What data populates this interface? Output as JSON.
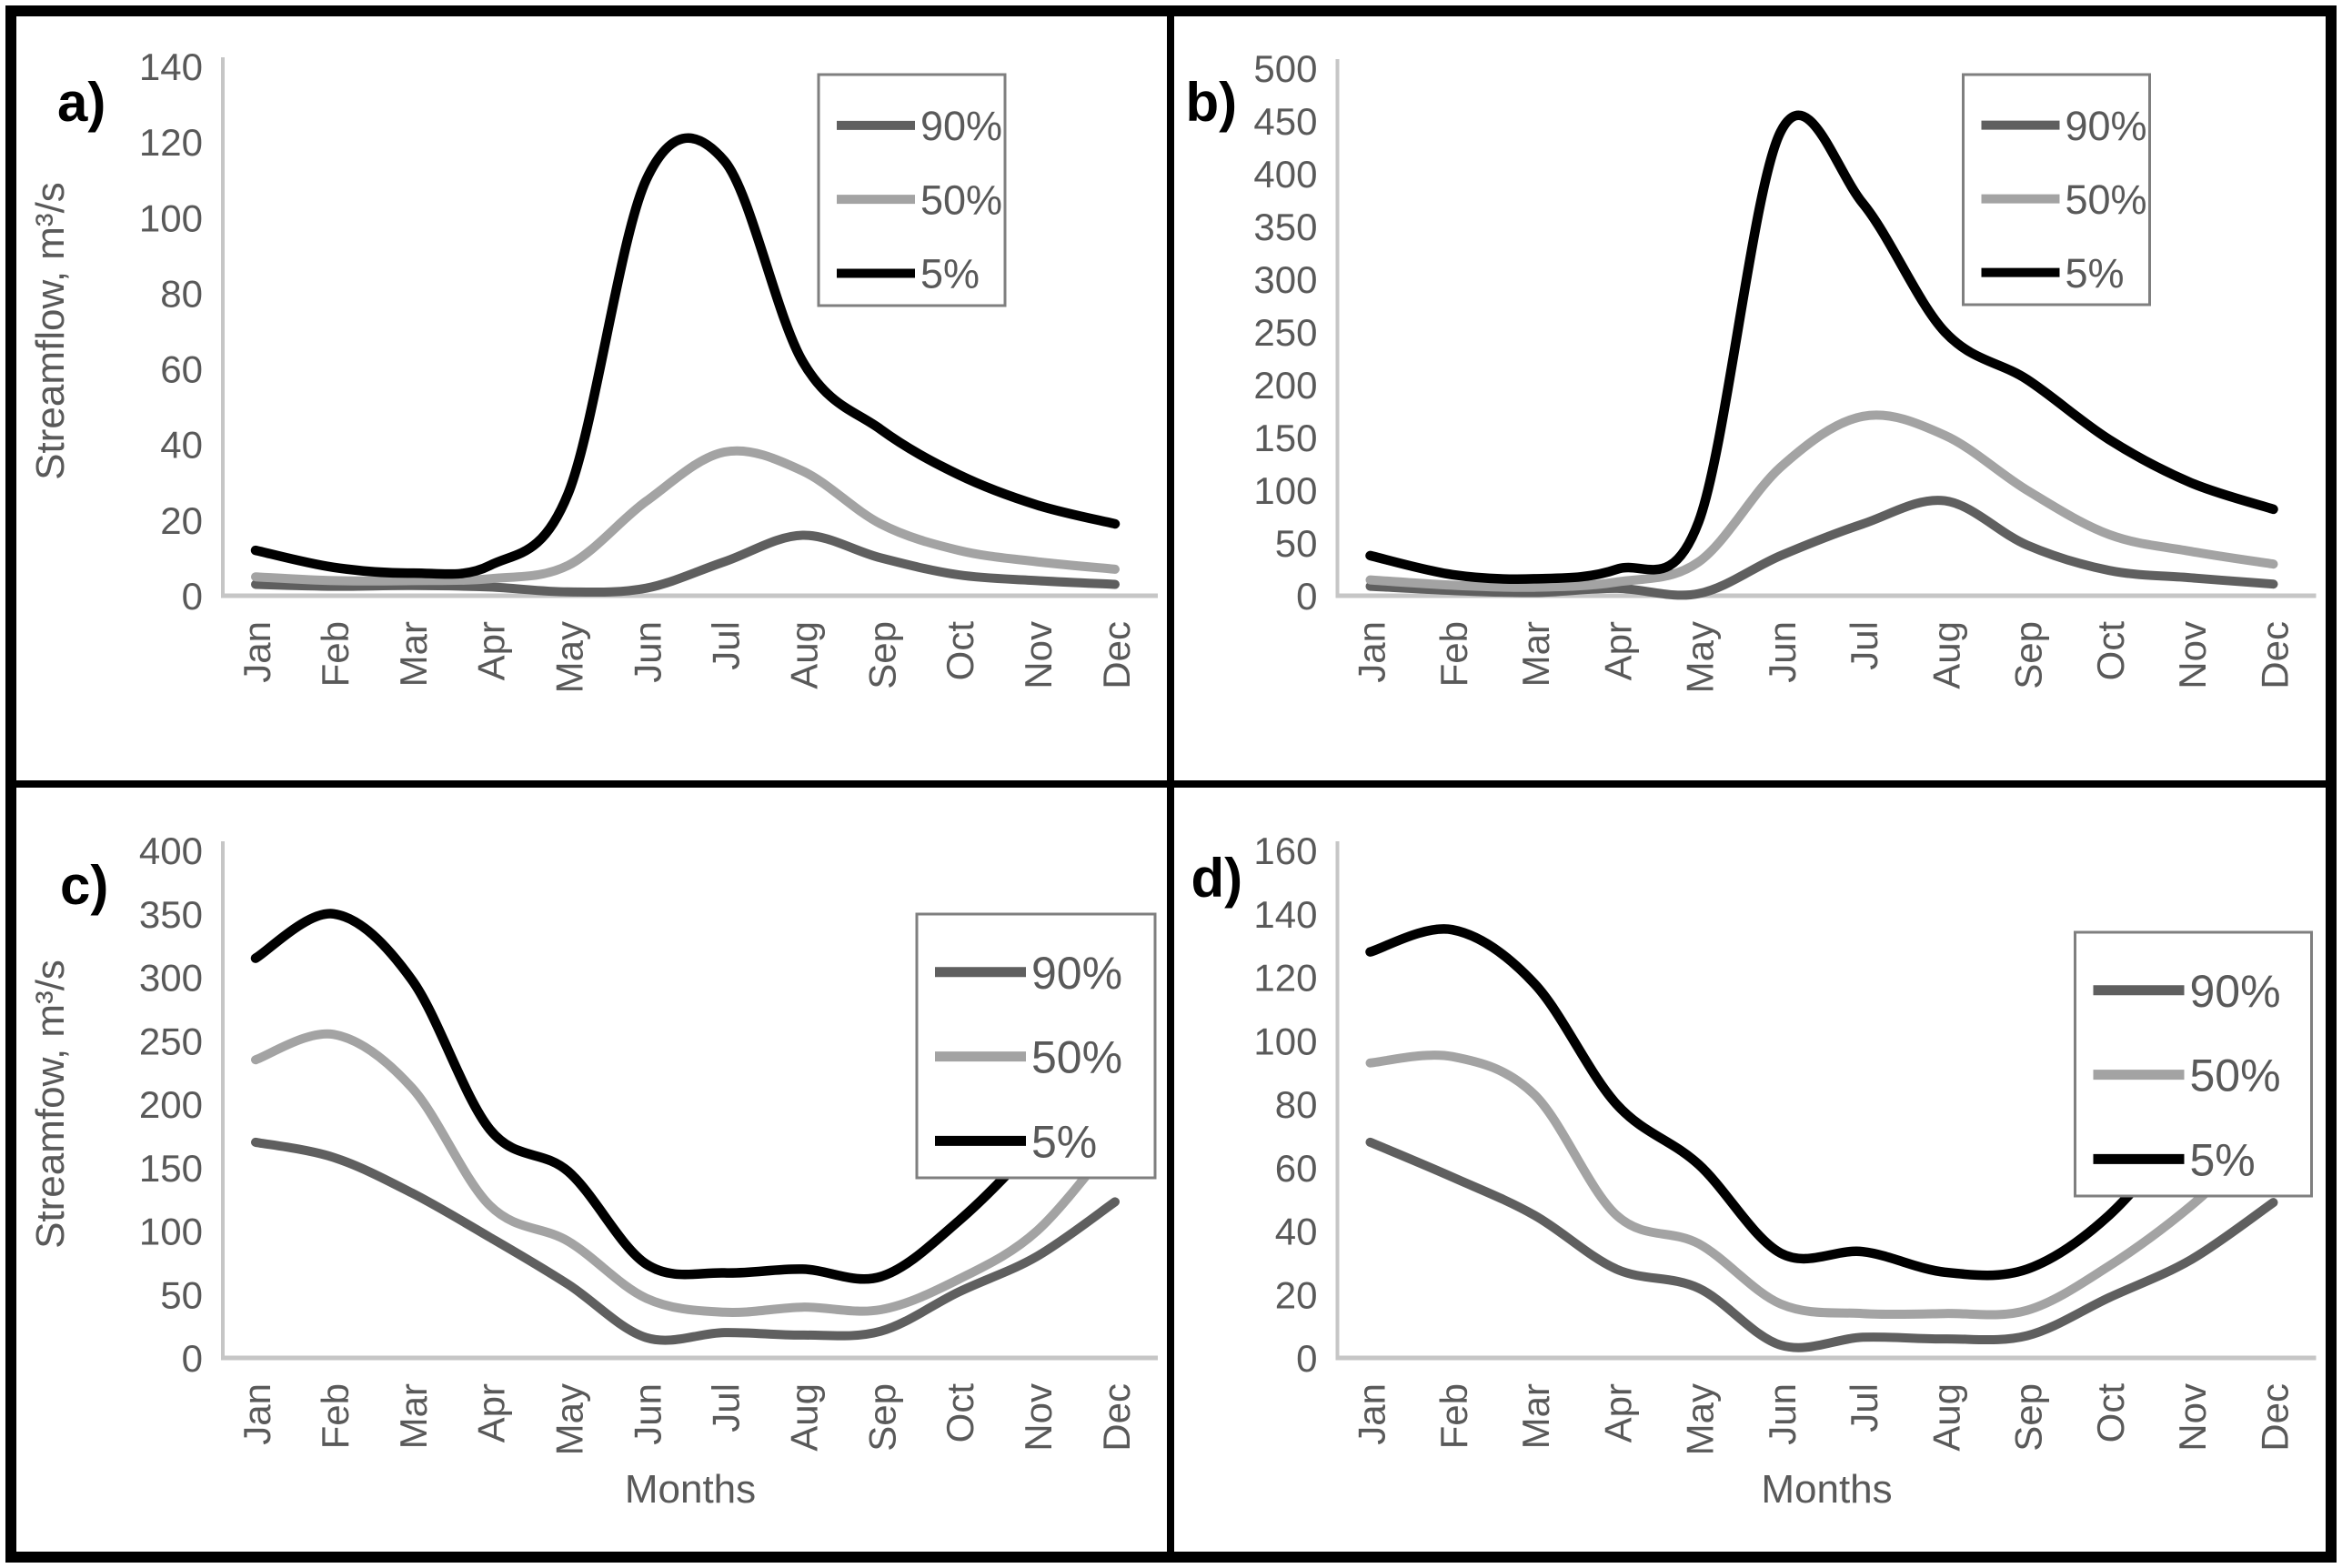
{
  "styles": {
    "text_color": "#595959",
    "axis_color": "#c6c6c6",
    "legend_border_color": "#7f7f7f",
    "panel_letter_color": "#000000",
    "background": "#ffffff",
    "frame_color": "#000000",
    "series_colors": {
      "p90": "#5f5f5f",
      "p50": "#a3a3a3",
      "p5": "#000000"
    }
  },
  "chart_data": [
    {
      "id": "a",
      "panel_label": "a)",
      "type": "line",
      "categories": [
        "Jan",
        "Feb",
        "Mar",
        "Apr",
        "May",
        "Jun",
        "Jul",
        "Aug",
        "Sep",
        "Oct",
        "Nov",
        "Dec"
      ],
      "xlabel": "",
      "ylabel": "Streamflow, m³/s",
      "ylim": [
        0,
        140
      ],
      "ytick_step": 20,
      "grid": false,
      "legend_position": "top-right",
      "legend_entries": [
        "90%",
        "50%",
        "5%"
      ],
      "series": [
        {
          "name": "90%",
          "color": "#5f5f5f",
          "values": [
            3,
            2.5,
            2.7,
            2.3,
            1,
            2,
            9,
            16,
            10,
            5.5,
            4,
            3
          ]
        },
        {
          "name": "50%",
          "color": "#a3a3a3",
          "values": [
            5,
            4,
            4,
            4.5,
            8,
            25,
            38,
            33,
            19,
            12,
            9,
            7
          ]
        },
        {
          "name": "5%",
          "color": "#000000",
          "values": [
            12,
            7.5,
            6,
            8,
            27,
            110,
            115,
            62,
            44,
            32,
            24,
            19
          ]
        }
      ]
    },
    {
      "id": "b",
      "panel_label": "b)",
      "type": "line",
      "categories": [
        "Jan",
        "Feb",
        "Mar",
        "Apr",
        "May",
        "Jun",
        "Jul",
        "Aug",
        "Sep",
        "Oct",
        "Nov",
        "Dec"
      ],
      "xlabel": "",
      "ylabel": "",
      "ylim": [
        0,
        500
      ],
      "ytick_step": 50,
      "grid": false,
      "legend_position": "top-right",
      "legend_entries": [
        "90%",
        "50%",
        "5%"
      ],
      "series": [
        {
          "name": "90%",
          "color": "#5f5f5f",
          "values": [
            9,
            5,
            3,
            7,
            2,
            38,
            68,
            90,
            48,
            24,
            17,
            11
          ]
        },
        {
          "name": "50%",
          "color": "#a3a3a3",
          "values": [
            15,
            10,
            8,
            13,
            32,
            122,
            170,
            152,
            100,
            58,
            42,
            30
          ]
        },
        {
          "name": "5%",
          "color": "#000000",
          "values": [
            38,
            20,
            16,
            25,
            70,
            440,
            372,
            250,
            205,
            148,
            107,
            82
          ]
        }
      ]
    },
    {
      "id": "c",
      "panel_label": "c)",
      "type": "line",
      "categories": [
        "Jan",
        "Feb",
        "Mar",
        "Apr",
        "May",
        "Jun",
        "Jul",
        "Aug",
        "Sep",
        "Oct",
        "Nov",
        "Dec"
      ],
      "xlabel": "Months",
      "ylabel": "Streamfow, m³/s",
      "ylim": [
        0,
        400
      ],
      "ytick_step": 50,
      "grid": false,
      "legend_position": "top-right",
      "legend_entries": [
        "90%",
        "50%",
        "5%"
      ],
      "series": [
        {
          "name": "90%",
          "color": "#5f5f5f",
          "values": [
            170,
            158,
            130,
            95,
            58,
            16,
            20,
            18,
            21,
            52,
            80,
            123
          ]
        },
        {
          "name": "50%",
          "color": "#a3a3a3",
          "values": [
            235,
            255,
            213,
            120,
            92,
            47,
            36,
            40,
            38,
            62,
            100,
            172
          ]
        },
        {
          "name": "5%",
          "color": "#000000",
          "values": [
            315,
            350,
            298,
            180,
            147,
            74,
            67,
            70,
            64,
            108,
            170,
            243
          ]
        }
      ]
    },
    {
      "id": "d",
      "panel_label": "d)",
      "type": "line",
      "categories": [
        "Jan",
        "Feb",
        "Mar",
        "Apr",
        "May",
        "Jun",
        "Jul",
        "Aug",
        "Sep",
        "Oct",
        "Nov",
        "Dec"
      ],
      "xlabel": "Months",
      "ylabel": "",
      "ylim": [
        0,
        160
      ],
      "ytick_step": 20,
      "grid": false,
      "legend_position": "top-right",
      "legend_entries": [
        "90%",
        "50%",
        "5%"
      ],
      "series": [
        {
          "name": "90%",
          "color": "#5f5f5f",
          "values": [
            68,
            57,
            45,
            28,
            22,
            4,
            6.5,
            6,
            7,
            19,
            31,
            49
          ]
        },
        {
          "name": "50%",
          "color": "#a3a3a3",
          "values": [
            93,
            95,
            83,
            45,
            36,
            17,
            14,
            14,
            15,
            29,
            48,
            72
          ]
        },
        {
          "name": "5%",
          "color": "#000000",
          "values": [
            128,
            135,
            118,
            80,
            61,
            33,
            33.5,
            27,
            28,
            45,
            75,
            107
          ]
        }
      ]
    }
  ]
}
